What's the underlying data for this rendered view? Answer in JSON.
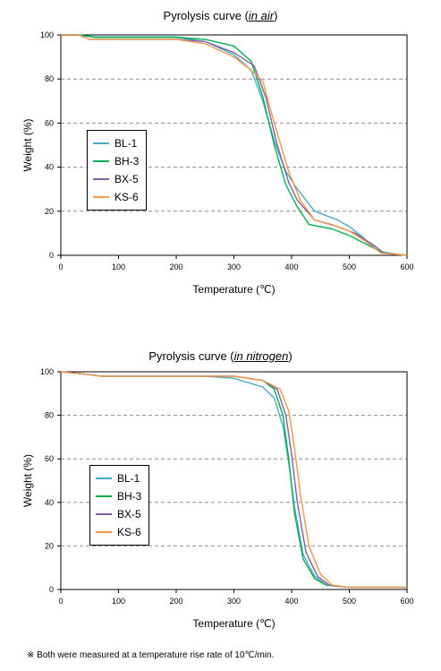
{
  "charts": [
    {
      "title_prefix": "Pyrolysis curve (",
      "title_condition": "in air",
      "title_suffix": ")",
      "ylabel": "Weight (%)",
      "xlabel": "Temperature (℃)",
      "legend": [
        {
          "name": "BL-1",
          "color": "#4bacc6"
        },
        {
          "name": "BH-3",
          "color": "#00b050"
        },
        {
          "name": "BX-5",
          "color": "#7f5fa5"
        },
        {
          "name": "KS-6",
          "color": "#f79646"
        }
      ]
    },
    {
      "title_prefix": "Pyrolysis curve (",
      "title_condition": "in nitrogen",
      "title_suffix": ")",
      "ylabel": "Weight (%)",
      "xlabel": "Temperature (℃)",
      "legend": [
        {
          "name": "BL-1",
          "color": "#4bacc6"
        },
        {
          "name": "BH-3",
          "color": "#00b050"
        },
        {
          "name": "BX-5",
          "color": "#7f5fa5"
        },
        {
          "name": "KS-6",
          "color": "#f79646"
        }
      ]
    }
  ],
  "footnote": "※ Both were measured at a temperature rise rate of 10℃/min.",
  "chart_data": [
    {
      "type": "line",
      "title": "Pyrolysis curve (in air)",
      "xlabel": "Temperature (℃)",
      "ylabel": "Weight (%)",
      "xlim": [
        0,
        600
      ],
      "ylim": [
        0,
        100
      ],
      "xticks": [
        0,
        100,
        200,
        300,
        400,
        500,
        600
      ],
      "yticks": [
        0,
        20,
        40,
        60,
        80,
        100
      ],
      "grid": "horizontal dashed",
      "legend_position": "left-middle",
      "series": [
        {
          "name": "BL-1",
          "color": "#4bacc6",
          "points": [
            [
              0,
              100
            ],
            [
              30,
              100
            ],
            [
              60,
              99
            ],
            [
              100,
              99
            ],
            [
              200,
              99
            ],
            [
              250,
              97
            ],
            [
              300,
              91
            ],
            [
              330,
              84
            ],
            [
              350,
              70
            ],
            [
              370,
              52
            ],
            [
              390,
              38
            ],
            [
              410,
              30
            ],
            [
              440,
              20
            ],
            [
              480,
              16
            ],
            [
              500,
              13
            ],
            [
              520,
              9
            ],
            [
              550,
              2
            ],
            [
              580,
              0.5
            ],
            [
              600,
              0
            ]
          ]
        },
        {
          "name": "BH-3",
          "color": "#00b050",
          "points": [
            [
              0,
              100
            ],
            [
              30,
              100
            ],
            [
              60,
              99
            ],
            [
              100,
              99
            ],
            [
              200,
              99
            ],
            [
              250,
              98
            ],
            [
              300,
              95
            ],
            [
              330,
              88
            ],
            [
              350,
              72
            ],
            [
              370,
              50
            ],
            [
              390,
              32
            ],
            [
              410,
              22
            ],
            [
              430,
              14
            ],
            [
              470,
              12
            ],
            [
              500,
              9
            ],
            [
              530,
              5
            ],
            [
              560,
              1
            ],
            [
              600,
              0
            ]
          ]
        },
        {
          "name": "BX-5",
          "color": "#7f5fa5",
          "points": [
            [
              0,
              100
            ],
            [
              30,
              100
            ],
            [
              50,
              98
            ],
            [
              100,
              98
            ],
            [
              200,
              98
            ],
            [
              250,
              97
            ],
            [
              300,
              92
            ],
            [
              335,
              86
            ],
            [
              355,
              72
            ],
            [
              375,
              50
            ],
            [
              395,
              33
            ],
            [
              410,
              25
            ],
            [
              440,
              16
            ],
            [
              480,
              13
            ],
            [
              510,
              10
            ],
            [
              540,
              5
            ],
            [
              560,
              1
            ],
            [
              600,
              0
            ]
          ]
        },
        {
          "name": "KS-6",
          "color": "#f79646",
          "points": [
            [
              0,
              100
            ],
            [
              30,
              100
            ],
            [
              50,
              98
            ],
            [
              100,
              98
            ],
            [
              200,
              98
            ],
            [
              250,
              96
            ],
            [
              300,
              90
            ],
            [
              330,
              84
            ],
            [
              350,
              79
            ],
            [
              370,
              60
            ],
            [
              395,
              38
            ],
            [
              415,
              25
            ],
            [
              440,
              16
            ],
            [
              470,
              14
            ],
            [
              500,
              11
            ],
            [
              530,
              6
            ],
            [
              555,
              1
            ],
            [
              600,
              0
            ]
          ]
        }
      ]
    },
    {
      "type": "line",
      "title": "Pyrolysis curve (in nitrogen)",
      "xlabel": "Temperature (℃)",
      "ylabel": "Weight (%)",
      "xlim": [
        0,
        600
      ],
      "ylim": [
        0,
        100
      ],
      "xticks": [
        0,
        100,
        200,
        300,
        400,
        500,
        600
      ],
      "yticks": [
        0,
        20,
        40,
        60,
        80,
        100
      ],
      "grid": "horizontal dashed",
      "legend_position": "left-middle",
      "series": [
        {
          "name": "BL-1",
          "color": "#4bacc6",
          "points": [
            [
              0,
              100
            ],
            [
              40,
              99
            ],
            [
              70,
              98
            ],
            [
              150,
              98
            ],
            [
              250,
              98
            ],
            [
              300,
              97
            ],
            [
              350,
              93
            ],
            [
              370,
              88
            ],
            [
              385,
              75
            ],
            [
              395,
              58
            ],
            [
              405,
              38
            ],
            [
              420,
              16
            ],
            [
              440,
              6
            ],
            [
              460,
              2
            ],
            [
              500,
              1
            ],
            [
              600,
              1
            ]
          ]
        },
        {
          "name": "BH-3",
          "color": "#00b050",
          "points": [
            [
              0,
              100
            ],
            [
              40,
              99
            ],
            [
              70,
              98
            ],
            [
              150,
              98
            ],
            [
              250,
              98
            ],
            [
              300,
              98
            ],
            [
              350,
              96
            ],
            [
              370,
              92
            ],
            [
              385,
              80
            ],
            [
              395,
              60
            ],
            [
              405,
              35
            ],
            [
              420,
              14
            ],
            [
              440,
              5
            ],
            [
              460,
              2
            ],
            [
              500,
              1
            ],
            [
              600,
              1
            ]
          ]
        },
        {
          "name": "BX-5",
          "color": "#7f5fa5",
          "points": [
            [
              0,
              100
            ],
            [
              40,
              99
            ],
            [
              70,
              98
            ],
            [
              150,
              98
            ],
            [
              250,
              98
            ],
            [
              300,
              98
            ],
            [
              350,
              96
            ],
            [
              375,
              92
            ],
            [
              390,
              80
            ],
            [
              400,
              62
            ],
            [
              410,
              40
            ],
            [
              425,
              17
            ],
            [
              445,
              6
            ],
            [
              465,
              2
            ],
            [
              500,
              1
            ],
            [
              600,
              1
            ]
          ]
        },
        {
          "name": "KS-6",
          "color": "#f79646",
          "points": [
            [
              0,
              100
            ],
            [
              40,
              99
            ],
            [
              70,
              98
            ],
            [
              150,
              98
            ],
            [
              250,
              98
            ],
            [
              300,
              98
            ],
            [
              350,
              96
            ],
            [
              380,
              92
            ],
            [
              395,
              82
            ],
            [
              405,
              65
            ],
            [
              415,
              44
            ],
            [
              430,
              20
            ],
            [
              450,
              7
            ],
            [
              470,
              2
            ],
            [
              500,
              1
            ],
            [
              600,
              1
            ]
          ]
        }
      ]
    }
  ]
}
